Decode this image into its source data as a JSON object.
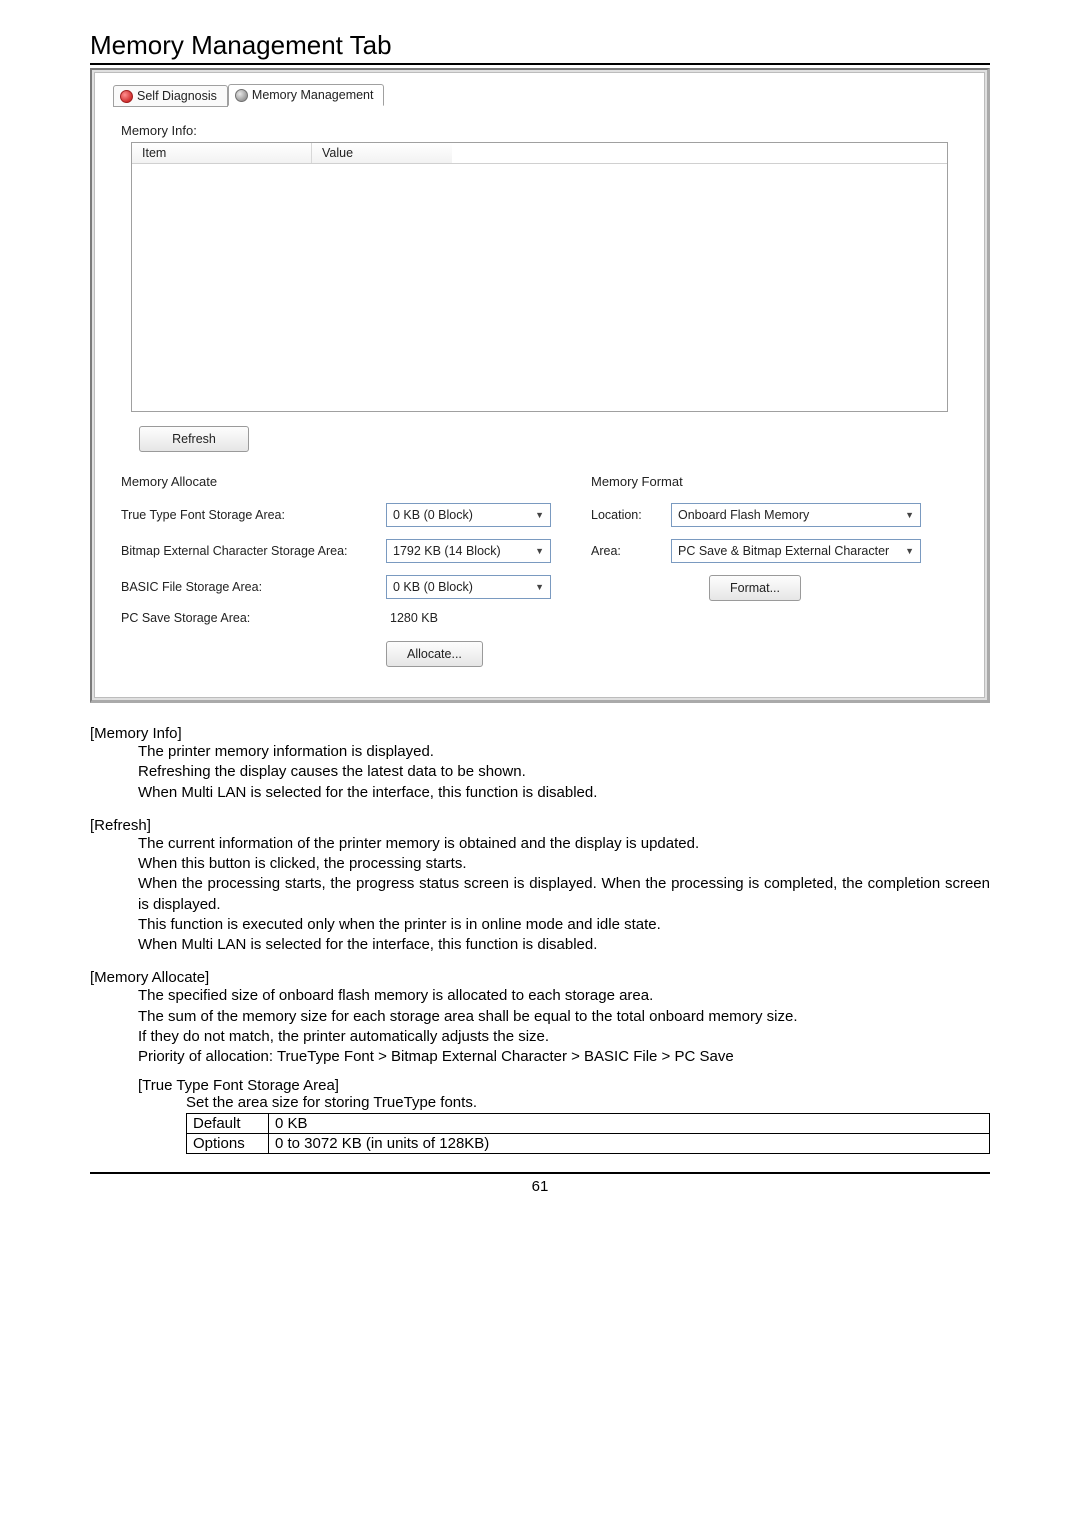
{
  "page_title": "Memory Management Tab",
  "tabs": {
    "self_diag": "Self Diagnosis",
    "mem_mgmt": "Memory Management"
  },
  "memory_info": {
    "label": "Memory Info:",
    "columns": {
      "item": "Item",
      "value": "Value"
    },
    "refresh": "Refresh"
  },
  "memory_allocate": {
    "title": "Memory Allocate",
    "ttf_label": "True Type Font Storage Area:",
    "ttf_value": "0 KB  (0 Block)",
    "bitmap_label": "Bitmap External Character Storage Area:",
    "bitmap_value": "1792 KB  (14 Block)",
    "basic_label": "BASIC File Storage Area:",
    "basic_value": "0 KB  (0 Block)",
    "pcsave_label": "PC Save Storage Area:",
    "pcsave_value": "1280 KB",
    "allocate_btn": "Allocate..."
  },
  "memory_format": {
    "title": "Memory Format",
    "location_label": "Location:",
    "location_value": "Onboard Flash Memory",
    "area_label": "Area:",
    "area_value": "PC Save & Bitmap External Character",
    "format_btn": "Format..."
  },
  "descriptions": {
    "memory_info_head": "[Memory Info]",
    "memory_info_body": "The printer memory information is displayed.\nRefreshing the display causes the latest data to be shown.\nWhen Multi LAN is selected for the interface, this function is disabled.",
    "refresh_head": "[Refresh]",
    "refresh_body": "The current information of the printer memory is obtained and the display is updated.\nWhen this button is clicked, the processing starts.\nWhen the processing starts, the progress status screen is displayed.   When the processing is completed, the completion screen is displayed.\nThis function is executed only when the printer is in online mode and idle state.\nWhen Multi LAN is selected for the interface, this function is disabled.",
    "mem_alloc_head": "[Memory Allocate]",
    "mem_alloc_body": "The specified size of onboard flash memory is allocated to each storage area.\nThe sum of the memory size for each storage area shall be equal to the total onboard memory size.\nIf they do not match, the printer automatically adjusts the size.\nPriority of allocation:   TrueType Font > Bitmap External Character > BASIC File > PC Save",
    "ttf_sub_head": "[True Type Font Storage Area]",
    "ttf_sub_body": "Set the area size for storing TrueType fonts.",
    "table": {
      "row1_key": "Default",
      "row1_val": "0 KB",
      "row2_key": "Options",
      "row2_val": "0 to 3072 KB (in units of 128KB)"
    }
  },
  "page_number": "61"
}
